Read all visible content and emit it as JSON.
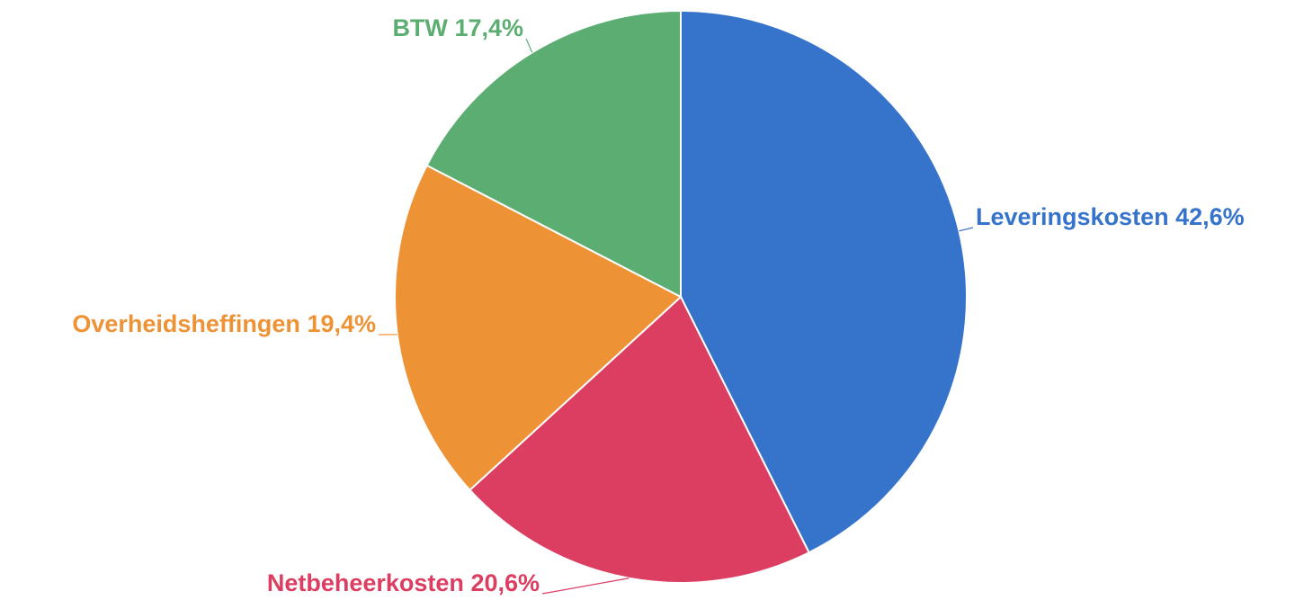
{
  "chart_data": {
    "type": "pie",
    "categories": [
      "Leveringskosten",
      "Netbeheerkosten",
      "Overheidsheffingen",
      "BTW"
    ],
    "values": [
      42.6,
      20.6,
      19.4,
      17.4
    ],
    "value_labels": [
      "42,6%",
      "20,6%",
      "19,4%",
      "17,4%"
    ],
    "colors": [
      "#3673cb",
      "#dc3e62",
      "#ee9236",
      "#5cad72"
    ]
  }
}
